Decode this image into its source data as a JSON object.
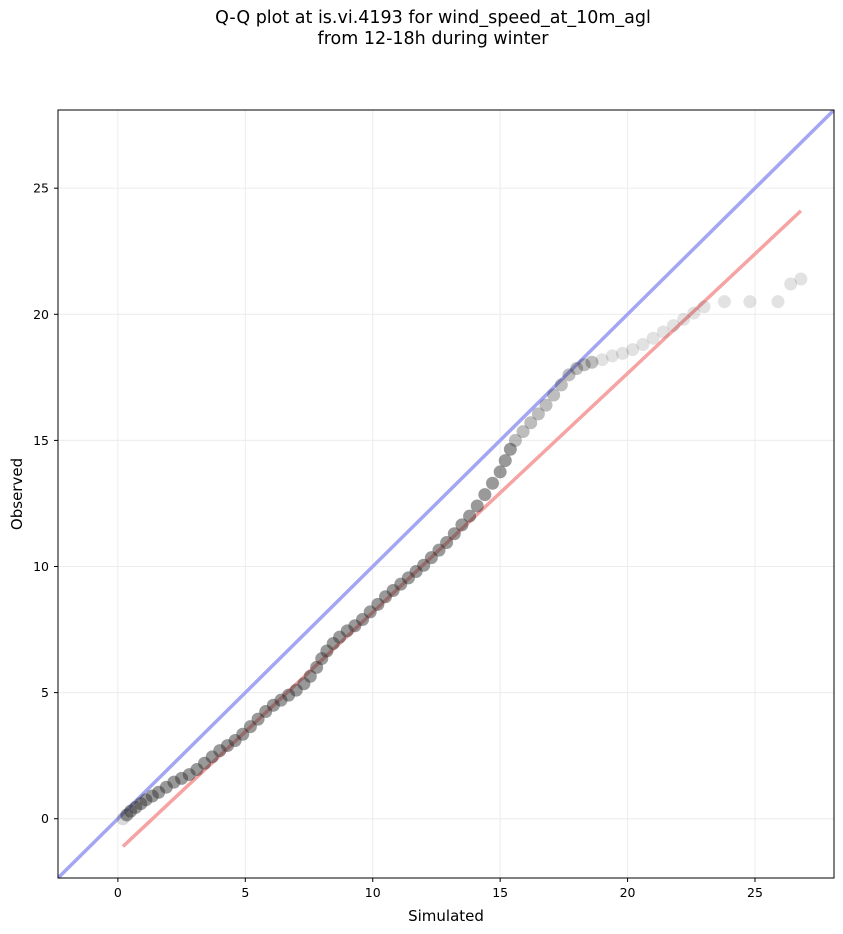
{
  "chart_data": {
    "type": "scatter",
    "title": [
      "Q-Q plot at is.vi.4193 for wind_speed_at_10m_agl",
      "from 12-18h during winter"
    ],
    "xlabel": "Simulated",
    "ylabel": "Observed",
    "xlim": [
      -2.35,
      28.1
    ],
    "ylim": [
      -2.35,
      28.1
    ],
    "xticks": [
      0,
      5,
      10,
      15,
      20,
      25
    ],
    "yticks": [
      0,
      5,
      10,
      15,
      20,
      25
    ],
    "grid": true,
    "identity_line": {
      "color": "#a3a6f2"
    },
    "fit_line": {
      "x": [
        0.2,
        26.8
      ],
      "y": [
        -1.1,
        24.1
      ],
      "color": "#f5a3a3"
    },
    "point_color": "#333333",
    "points_x": [
      0.2,
      0.35,
      0.5,
      0.7,
      0.9,
      1.1,
      1.35,
      1.6,
      1.9,
      2.2,
      2.5,
      2.8,
      3.1,
      3.4,
      3.7,
      4.0,
      4.3,
      4.6,
      4.9,
      5.2,
      5.5,
      5.8,
      6.1,
      6.4,
      6.7,
      7.0,
      7.3,
      7.55,
      7.8,
      8.0,
      8.2,
      8.45,
      8.7,
      9.0,
      9.3,
      9.6,
      9.9,
      10.2,
      10.5,
      10.8,
      11.1,
      11.4,
      11.7,
      12.0,
      12.3,
      12.6,
      12.9,
      13.2,
      13.5,
      13.8,
      14.1,
      14.4,
      14.7,
      15.0,
      15.2,
      15.4,
      15.6,
      15.9,
      16.2,
      16.5,
      16.8,
      17.1,
      17.4,
      17.7,
      18.0,
      18.3,
      18.6,
      19.0,
      19.4,
      19.8,
      20.2,
      20.6,
      21.0,
      21.4,
      21.8,
      22.2,
      22.6,
      23.0,
      23.8,
      24.8,
      25.9,
      26.4,
      26.8
    ],
    "points_y": [
      0.0,
      0.15,
      0.3,
      0.45,
      0.6,
      0.75,
      0.9,
      1.05,
      1.25,
      1.45,
      1.6,
      1.75,
      1.95,
      2.2,
      2.45,
      2.7,
      2.9,
      3.1,
      3.35,
      3.65,
      3.95,
      4.25,
      4.5,
      4.7,
      4.9,
      5.1,
      5.35,
      5.65,
      6.0,
      6.35,
      6.65,
      6.95,
      7.2,
      7.45,
      7.65,
      7.9,
      8.2,
      8.5,
      8.8,
      9.05,
      9.3,
      9.55,
      9.8,
      10.05,
      10.35,
      10.65,
      10.95,
      11.3,
      11.65,
      12.0,
      12.4,
      12.85,
      13.3,
      13.75,
      14.2,
      14.65,
      15.0,
      15.35,
      15.7,
      16.05,
      16.4,
      16.8,
      17.2,
      17.6,
      17.85,
      18.0,
      18.1,
      18.2,
      18.35,
      18.45,
      18.6,
      18.8,
      19.05,
      19.3,
      19.55,
      19.8,
      20.05,
      20.3,
      20.5,
      20.5,
      20.5,
      21.2,
      21.4
    ]
  }
}
